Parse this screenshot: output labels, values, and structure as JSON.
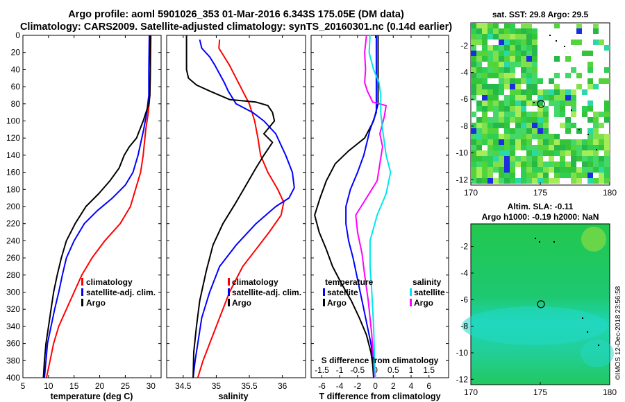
{
  "header": {
    "line1": "Argo profile: aoml 5901026_353 01-Mar-2016 6.343S 175.05E (DM data)",
    "line2": "Climatology: CARS2009. Satellite-adjusted climatology: synTS_20160301.nc (0.14d earlier)"
  },
  "credit": "©IMOS 12-Dec-2018 23:56:58",
  "colors": {
    "clim": "#ff0000",
    "sat": "#0000ff",
    "argo": "#000000",
    "sal_diff": "#00e5ee",
    "sal_sat": "#ff00ff"
  },
  "chart_data": [
    {
      "type": "line",
      "name": "temperature",
      "xlabel": "temperature (deg C)",
      "ylabel": "",
      "xlim": [
        5,
        32
      ],
      "ylim": [
        400,
        0
      ],
      "xticks": [
        "5",
        "10",
        "15",
        "20",
        "25",
        "30"
      ],
      "xtick_values": [
        5,
        10,
        15,
        20,
        25,
        30
      ],
      "yticks": [
        "0",
        "20",
        "40",
        "60",
        "80",
        "100",
        "120",
        "140",
        "160",
        "180",
        "200",
        "220",
        "240",
        "260",
        "280",
        "300",
        "320",
        "340",
        "360",
        "380",
        "400"
      ],
      "legend": [
        "climatology",
        "satellite-adj. clim.",
        "Argo"
      ],
      "series": [
        {
          "name": "climatology",
          "color": "#ff0000",
          "points": [
            [
              30,
              0
            ],
            [
              29.9,
              40
            ],
            [
              29.8,
              70
            ],
            [
              29.5,
              90
            ],
            [
              29,
              110
            ],
            [
              28.5,
              140
            ],
            [
              28,
              160
            ],
            [
              27,
              180
            ],
            [
              26,
              200
            ],
            [
              24,
              220
            ],
            [
              21,
              240
            ],
            [
              18.5,
              260
            ],
            [
              16.5,
              280
            ],
            [
              15,
              300
            ],
            [
              13.5,
              320
            ],
            [
              12,
              340
            ],
            [
              11,
              360
            ],
            [
              10.3,
              380
            ],
            [
              9.6,
              400
            ]
          ]
        },
        {
          "name": "satellite-adj. clim.",
          "color": "#0000ff",
          "points": [
            [
              29.7,
              0
            ],
            [
              29.6,
              40
            ],
            [
              29.6,
              70
            ],
            [
              29.2,
              90
            ],
            [
              28.6,
              110
            ],
            [
              27.5,
              140
            ],
            [
              26.5,
              160
            ],
            [
              25,
              175
            ],
            [
              22.5,
              190
            ],
            [
              19.5,
              205
            ],
            [
              17,
              220
            ],
            [
              15,
              240
            ],
            [
              13.5,
              260
            ],
            [
              12.7,
              280
            ],
            [
              12,
              300
            ],
            [
              11.2,
              320
            ],
            [
              10.5,
              340
            ],
            [
              9.8,
              360
            ],
            [
              9.5,
              380
            ],
            [
              9.2,
              400
            ]
          ]
        },
        {
          "name": "Argo",
          "color": "#000000",
          "points": [
            [
              29.9,
              0
            ],
            [
              29.9,
              40
            ],
            [
              29.8,
              70
            ],
            [
              29.6,
              80
            ],
            [
              28.5,
              100
            ],
            [
              27.2,
              120
            ],
            [
              25.8,
              130
            ],
            [
              24.8,
              140
            ],
            [
              23.8,
              155
            ],
            [
              22,
              170
            ],
            [
              19.8,
              185
            ],
            [
              17.3,
              200
            ],
            [
              15.2,
              220
            ],
            [
              13.5,
              240
            ],
            [
              12.5,
              260
            ],
            [
              11.7,
              280
            ],
            [
              11,
              300
            ],
            [
              10.5,
              320
            ],
            [
              10,
              340
            ],
            [
              9.5,
              360
            ],
            [
              9.2,
              380
            ],
            [
              9,
              400
            ]
          ]
        }
      ]
    },
    {
      "type": "line",
      "name": "salinity",
      "xlabel": "salinity",
      "ylabel": "",
      "xlim": [
        34.25,
        36.35
      ],
      "ylim": [
        400,
        0
      ],
      "xticks": [
        "34.5",
        "35",
        "35.5",
        "36"
      ],
      "xtick_values": [
        34.5,
        35,
        35.5,
        36
      ],
      "legend": [
        "climatology",
        "satellite-adj. clim.",
        "Argo"
      ],
      "series": [
        {
          "name": "climatology",
          "color": "#ff0000",
          "points": [
            [
              35.05,
              5
            ],
            [
              35.04,
              15
            ],
            [
              35.12,
              25
            ],
            [
              35.2,
              35
            ],
            [
              35.3,
              50
            ],
            [
              35.4,
              65
            ],
            [
              35.5,
              80
            ],
            [
              35.58,
              100
            ],
            [
              35.63,
              120
            ],
            [
              35.67,
              140
            ],
            [
              35.78,
              160
            ],
            [
              35.93,
              180
            ],
            [
              36.02,
              195
            ],
            [
              35.98,
              210
            ],
            [
              35.8,
              230
            ],
            [
              35.6,
              250
            ],
            [
              35.4,
              270
            ],
            [
              35.2,
              300
            ],
            [
              35.05,
              330
            ],
            [
              34.9,
              360
            ],
            [
              34.8,
              380
            ],
            [
              34.72,
              400
            ]
          ]
        },
        {
          "name": "satellite-adj. clim.",
          "color": "#0000ff",
          "points": [
            [
              34.75,
              5
            ],
            [
              34.78,
              15
            ],
            [
              34.9,
              25
            ],
            [
              34.98,
              35
            ],
            [
              35.05,
              45
            ],
            [
              35.12,
              55
            ],
            [
              35.18,
              65
            ],
            [
              35.3,
              80
            ],
            [
              35.55,
              90
            ],
            [
              35.72,
              100
            ],
            [
              35.9,
              115
            ],
            [
              36.05,
              140
            ],
            [
              36.15,
              160
            ],
            [
              36.18,
              178
            ],
            [
              36.1,
              190
            ],
            [
              35.9,
              200
            ],
            [
              35.6,
              220
            ],
            [
              35.3,
              245
            ],
            [
              35.05,
              270
            ],
            [
              34.9,
              300
            ],
            [
              34.78,
              330
            ],
            [
              34.72,
              360
            ],
            [
              34.68,
              380
            ],
            [
              34.65,
              400
            ]
          ]
        },
        {
          "name": "Argo",
          "color": "#000000",
          "points": [
            [
              34.55,
              0
            ],
            [
              34.55,
              40
            ],
            [
              34.58,
              50
            ],
            [
              34.7,
              58
            ],
            [
              34.9,
              65
            ],
            [
              35.2,
              75
            ],
            [
              35.6,
              78
            ],
            [
              35.78,
              82
            ],
            [
              35.85,
              90
            ],
            [
              35.88,
              100
            ],
            [
              35.72,
              115
            ],
            [
              35.85,
              125
            ],
            [
              35.72,
              140
            ],
            [
              35.6,
              155
            ],
            [
              35.45,
              175
            ],
            [
              35.3,
              195
            ],
            [
              35.1,
              220
            ],
            [
              34.95,
              245
            ],
            [
              34.85,
              275
            ],
            [
              34.75,
              310
            ],
            [
              34.7,
              340
            ],
            [
              34.66,
              370
            ],
            [
              34.65,
              400
            ]
          ]
        }
      ]
    },
    {
      "type": "line",
      "name": "difference from climatology",
      "xlabel": "T difference from climatology",
      "x2label": "S difference from climatology",
      "xlim": [
        -7.2,
        8.2
      ],
      "ylim": [
        400,
        0
      ],
      "xticks": [
        "-6",
        "-4",
        "-2",
        "0",
        "2",
        "4",
        "6"
      ],
      "xtick_values": [
        -6,
        -4,
        -2,
        0,
        2,
        4,
        6
      ],
      "x2ticks": [
        "-1.5",
        "-1",
        "-0.5",
        "0",
        "0.5",
        "1",
        "1.5"
      ],
      "x2tick_values": [
        -1.5,
        -1,
        -0.5,
        0,
        0.5,
        1,
        1.5
      ],
      "legend_temperature": {
        "title": "temperature",
        "items": [
          "satellite",
          "Argo"
        ]
      },
      "legend_salinity": {
        "title": "salinity",
        "items": [
          "satellite",
          "Argo"
        ]
      },
      "series": [
        {
          "name": "temperature Argo",
          "color": "#000000",
          "points": [
            [
              0.3,
              0
            ],
            [
              0.3,
              80
            ],
            [
              -0.2,
              100
            ],
            [
              -1.2,
              120
            ],
            [
              -3,
              135
            ],
            [
              -4.5,
              150
            ],
            [
              -5.5,
              170
            ],
            [
              -6.2,
              190
            ],
            [
              -6.8,
              210
            ],
            [
              -6.3,
              230
            ],
            [
              -5.5,
              250
            ],
            [
              -4.8,
              270
            ],
            [
              -3.8,
              290
            ],
            [
              -2.7,
              310
            ],
            [
              -1.8,
              330
            ],
            [
              -1,
              350
            ],
            [
              -0.5,
              370
            ],
            [
              -0.3,
              385
            ],
            [
              -0.2,
              400
            ]
          ]
        },
        {
          "name": "temperature satellite",
          "color": "#0000ff",
          "points": [
            [
              0.1,
              0
            ],
            [
              0.1,
              90
            ],
            [
              -0.6,
              110
            ],
            [
              -1.3,
              140
            ],
            [
              -2,
              160
            ],
            [
              -2.8,
              180
            ],
            [
              -3.3,
              200
            ],
            [
              -3.3,
              220
            ],
            [
              -3,
              240
            ],
            [
              -2.5,
              260
            ],
            [
              -2.1,
              280
            ],
            [
              -1.7,
              300
            ],
            [
              -1.3,
              320
            ],
            [
              -0.9,
              340
            ],
            [
              -0.5,
              360
            ],
            [
              -0.2,
              380
            ],
            [
              -0.1,
              400
            ]
          ]
        },
        {
          "name": "salinity Argo",
          "color": "#ff00ff",
          "points": [
            [
              -1,
              0
            ],
            [
              -1.2,
              20
            ],
            [
              -1.1,
              40
            ],
            [
              -1.2,
              55
            ],
            [
              -0.9,
              65
            ],
            [
              -0.3,
              78
            ],
            [
              1.2,
              82
            ],
            [
              1,
              95
            ],
            [
              0.5,
              115
            ],
            [
              0.8,
              130
            ],
            [
              0.5,
              150
            ],
            [
              0.2,
              170
            ],
            [
              -1,
              190
            ],
            [
              -2.2,
              210
            ],
            [
              -2,
              230
            ],
            [
              -1.5,
              255
            ],
            [
              -1.2,
              280
            ],
            [
              -0.8,
              310
            ],
            [
              -0.4,
              350
            ],
            [
              -0.2,
              380
            ],
            [
              -0.1,
              400
            ]
          ]
        },
        {
          "name": "salinity satellite",
          "color": "#00e5ee",
          "points": [
            [
              -0.6,
              0
            ],
            [
              -0.7,
              20
            ],
            [
              -0.2,
              40
            ],
            [
              0.4,
              55
            ],
            [
              0.6,
              70
            ],
            [
              0.6,
              90
            ],
            [
              0.8,
              110
            ],
            [
              1.2,
              140
            ],
            [
              1.7,
              160
            ],
            [
              1.2,
              185
            ],
            [
              0.2,
              210
            ],
            [
              -0.6,
              240
            ],
            [
              -0.6,
              270
            ],
            [
              -0.4,
              300
            ],
            [
              -0.2,
              340
            ],
            [
              -0.1,
              380
            ],
            [
              0,
              400
            ]
          ]
        }
      ]
    }
  ],
  "maps": {
    "sst": {
      "title": "sat. SST: 29.8 Argo: 29.5",
      "xticks": [
        "170",
        "175",
        "180"
      ],
      "yticks": [
        "-2",
        "-4",
        "-6",
        "-8",
        "-10",
        "-12"
      ],
      "profile_lon": 175.05,
      "profile_lat": -6.343
    },
    "sla": {
      "title_line1": "Altim. SLA: -0.11",
      "title_line2": "Argo h1000: -0.19 h2000: NaN",
      "xticks": [
        "170",
        "175",
        "180"
      ],
      "yticks": [
        "-2",
        "-4",
        "-6",
        "-8",
        "-10",
        "-12"
      ],
      "profile_lon": 175.05,
      "profile_lat": -6.343
    }
  }
}
